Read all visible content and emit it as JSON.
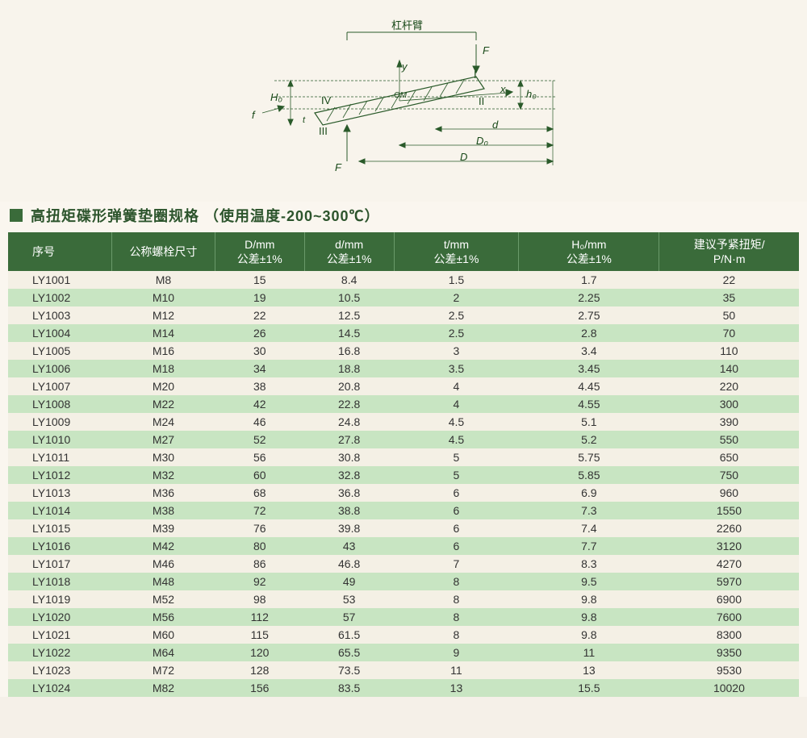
{
  "diagram": {
    "top_label": "杠杆臂",
    "labels": {
      "F_top": "F",
      "F_bottom": "F",
      "f_left": "f",
      "H0": "H₀",
      "h0": "h₀",
      "I": "I",
      "II": "II",
      "III": "III",
      "IV": "IV",
      "OM": "OM",
      "x": "x",
      "y": "y",
      "t": "t",
      "d": "d",
      "D0": "D₀",
      "D": "D"
    },
    "colors": {
      "line": "#2a5a2a",
      "text": "#1a4a1a",
      "hatch": "#4a7a4a"
    }
  },
  "title": "高扭矩碟形弹簧垫圈规格 （使用温度-200~300℃）",
  "table": {
    "header_bg": "#3a6b3a",
    "header_fg": "#ffffff",
    "row_odd_bg": "#f4f0e5",
    "row_even_bg": "#c8e5c2",
    "columns": [
      {
        "label": "序号"
      },
      {
        "label": "公称螺栓尺寸"
      },
      {
        "label": "D/mm\n公差±1%"
      },
      {
        "label": "d/mm\n公差±1%"
      },
      {
        "label": "t/mm\n公差±1%"
      },
      {
        "label": "H₀/mm\n公差±1%"
      },
      {
        "label": "建议予紧扭矩/\nP/N·m"
      }
    ],
    "rows": [
      [
        "LY1001",
        "M8",
        "15",
        "8.4",
        "1.5",
        "1.7",
        "22"
      ],
      [
        "LY1002",
        "M10",
        "19",
        "10.5",
        "2",
        "2.25",
        "35"
      ],
      [
        "LY1003",
        "M12",
        "22",
        "12.5",
        "2.5",
        "2.75",
        "50"
      ],
      [
        "LY1004",
        "M14",
        "26",
        "14.5",
        "2.5",
        "2.8",
        "70"
      ],
      [
        "LY1005",
        "M16",
        "30",
        "16.8",
        "3",
        "3.4",
        "110"
      ],
      [
        "LY1006",
        "M18",
        "34",
        "18.8",
        "3.5",
        "3.45",
        "140"
      ],
      [
        "LY1007",
        "M20",
        "38",
        "20.8",
        "4",
        "4.45",
        "220"
      ],
      [
        "LY1008",
        "M22",
        "42",
        "22.8",
        "4",
        "4.55",
        "300"
      ],
      [
        "LY1009",
        "M24",
        "46",
        "24.8",
        "4.5",
        "5.1",
        "390"
      ],
      [
        "LY1010",
        "M27",
        "52",
        "27.8",
        "4.5",
        "5.2",
        "550"
      ],
      [
        "LY1011",
        "M30",
        "56",
        "30.8",
        "5",
        "5.75",
        "650"
      ],
      [
        "LY1012",
        "M32",
        "60",
        "32.8",
        "5",
        "5.85",
        "750"
      ],
      [
        "LY1013",
        "M36",
        "68",
        "36.8",
        "6",
        "6.9",
        "960"
      ],
      [
        "LY1014",
        "M38",
        "72",
        "38.8",
        "6",
        "7.3",
        "1550"
      ],
      [
        "LY1015",
        "M39",
        "76",
        "39.8",
        "6",
        "7.4",
        "2260"
      ],
      [
        "LY1016",
        "M42",
        "80",
        "43",
        "6",
        "7.7",
        "3120"
      ],
      [
        "LY1017",
        "M46",
        "86",
        "46.8",
        "7",
        "8.3",
        "4270"
      ],
      [
        "LY1018",
        "M48",
        "92",
        "49",
        "8",
        "9.5",
        "5970"
      ],
      [
        "LY1019",
        "M52",
        "98",
        "53",
        "8",
        "9.8",
        "6900"
      ],
      [
        "LY1020",
        "M56",
        "112",
        "57",
        "8",
        "9.8",
        "7600"
      ],
      [
        "LY1021",
        "M60",
        "115",
        "61.5",
        "8",
        "9.8",
        "8300"
      ],
      [
        "LY1022",
        "M64",
        "120",
        "65.5",
        "9",
        "11",
        "9350"
      ],
      [
        "LY1023",
        "M72",
        "128",
        "73.5",
        "11",
        "13",
        "9530"
      ],
      [
        "LY1024",
        "M82",
        "156",
        "83.5",
        "13",
        "15.5",
        "10020"
      ]
    ]
  }
}
